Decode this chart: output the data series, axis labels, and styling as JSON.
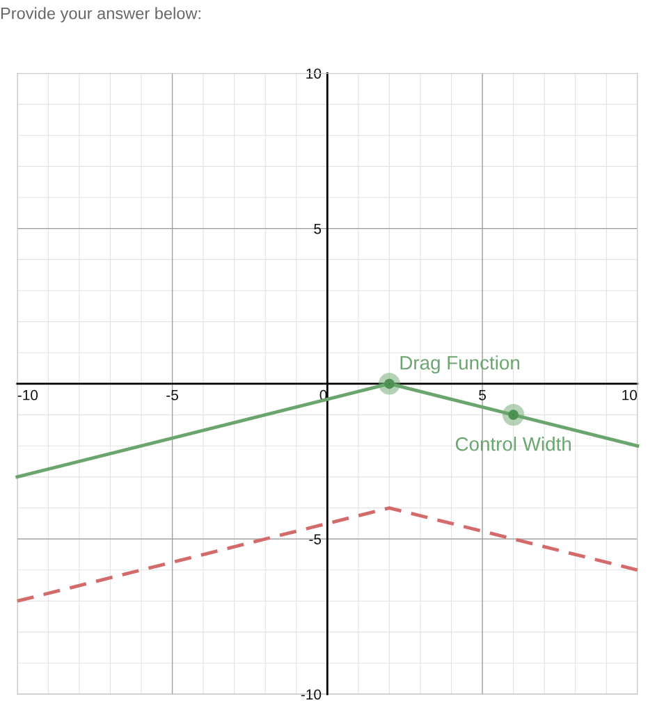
{
  "chart_data": {
    "type": "line",
    "title": "Provide your answer below:",
    "x": [
      -10,
      2,
      10
    ],
    "series": [
      {
        "color": "#6aa56f",
        "values": [
          -3,
          0,
          -2
        ]
      },
      {
        "color": "#d46b6b",
        "values": [
          -7,
          -4,
          -6
        ],
        "line_style": "dashed"
      },
      {
        "type": "scatter",
        "color": "#2f7d36",
        "x": [
          2,
          6
        ],
        "values": [
          0,
          -1
        ],
        "marker": "circle"
      }
    ],
    "annotations": [
      {
        "text": "Drag Function",
        "x": 2,
        "y": 0
      },
      {
        "text": "Control Width",
        "x": 6,
        "y": -1
      }
    ],
    "xlim": [
      -10,
      10
    ],
    "ylim": [
      -10,
      10
    ],
    "xticks": [
      -10,
      -5,
      0,
      5,
      10
    ],
    "yticks": [
      -10,
      -5,
      5,
      10
    ],
    "grid": true
  }
}
